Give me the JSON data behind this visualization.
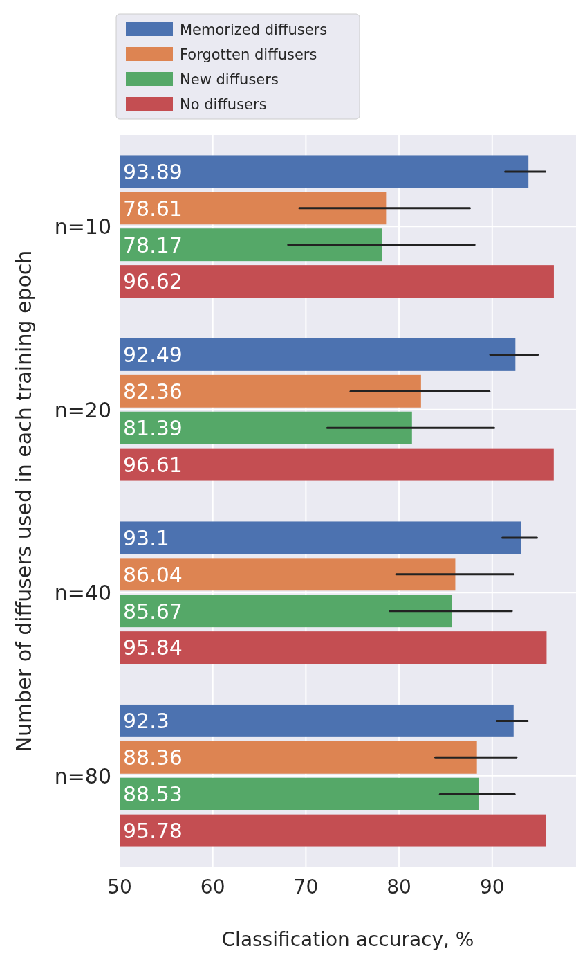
{
  "chart_data": {
    "type": "bar",
    "orientation": "horizontal",
    "xlabel": "Classification accuracy, %",
    "ylabel": "Number of diffusers used in each training epoch",
    "categories": [
      "n=10",
      "n=20",
      "n=40",
      "n=80"
    ],
    "series": [
      {
        "name": "Memorized diffusers",
        "color": "#4c72b0",
        "values": [
          93.89,
          92.49,
          93.1,
          92.3
        ],
        "errors": [
          [
            91.4,
            95.7
          ],
          [
            89.8,
            94.9
          ],
          [
            91.1,
            94.8
          ],
          [
            90.5,
            93.8
          ]
        ]
      },
      {
        "name": "Forgotten diffusers",
        "color": "#dd8452",
        "values": [
          78.61,
          82.36,
          86.04,
          88.36
        ],
        "errors": [
          [
            69.3,
            87.6
          ],
          [
            74.8,
            89.7
          ],
          [
            79.7,
            92.3
          ],
          [
            83.9,
            92.6
          ]
        ]
      },
      {
        "name": "New diffusers",
        "color": "#55a868",
        "values": [
          78.17,
          81.39,
          85.67,
          88.53
        ],
        "errors": [
          [
            68.1,
            88.1
          ],
          [
            72.3,
            90.2
          ],
          [
            79.0,
            92.1
          ],
          [
            84.4,
            92.4
          ]
        ]
      },
      {
        "name": "No diffusers",
        "color": "#c44e52",
        "values": [
          96.62,
          96.61,
          95.84,
          95.78
        ]
      }
    ],
    "xlim": [
      50,
      99
    ],
    "xticks": [
      50,
      60,
      70,
      80,
      90
    ],
    "grid": true,
    "legend": "top left",
    "data_labels": true
  }
}
